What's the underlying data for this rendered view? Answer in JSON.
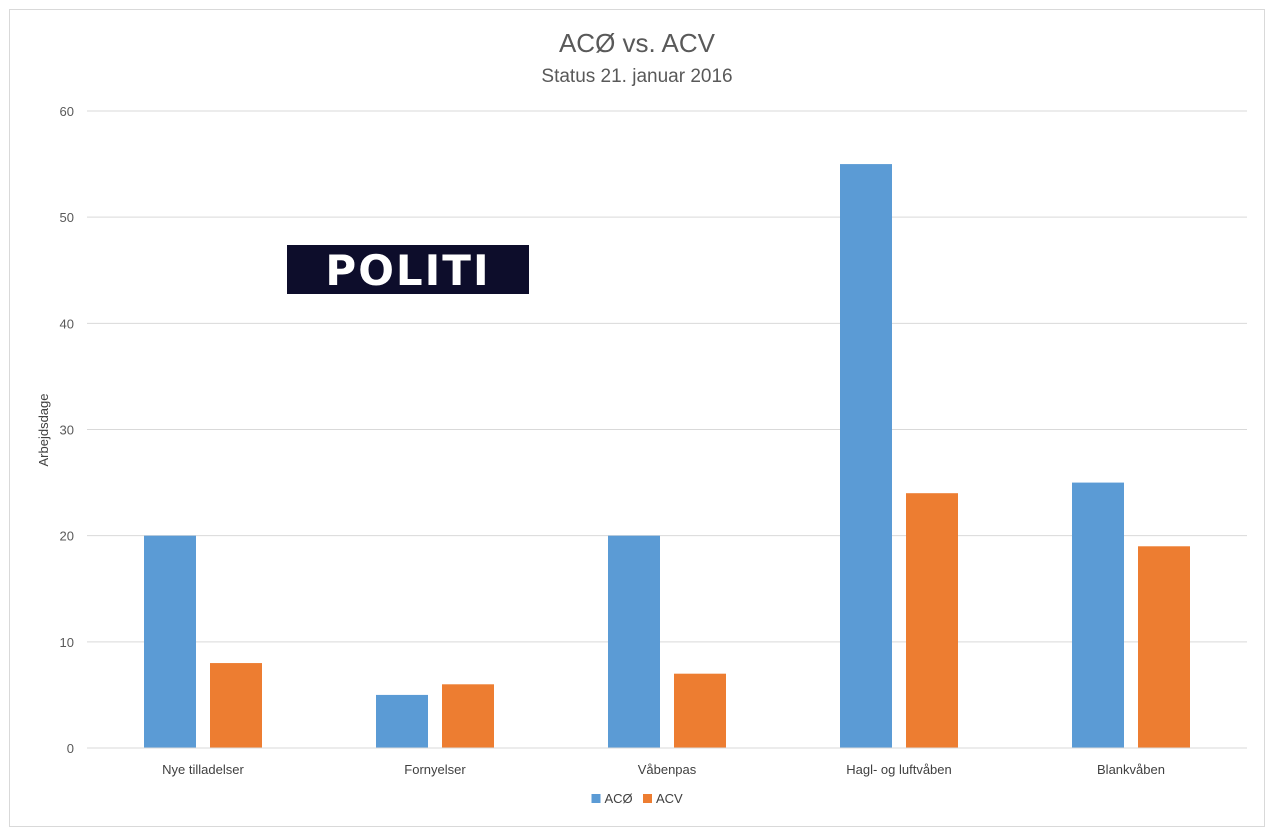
{
  "chart_data": {
    "type": "bar",
    "title": "ACØ vs. ACV",
    "subtitle": "Status 21. januar 2016",
    "xlabel": "",
    "ylabel": "Arbejdsdage",
    "ylim": [
      0,
      60
    ],
    "yticks": [
      0,
      10,
      20,
      30,
      40,
      50,
      60
    ],
    "grid": true,
    "legend_position": "bottom",
    "categories": [
      "Nye tilladelser",
      "Fornyelser",
      "Våbenpas",
      "Hagl- og luftvåben",
      "Blankvåben"
    ],
    "series": [
      {
        "name": "ACØ",
        "color": "#5b9bd5",
        "values": [
          20,
          5,
          20,
          55,
          25
        ]
      },
      {
        "name": "ACV",
        "color": "#ed7d31",
        "values": [
          8,
          6,
          7,
          24,
          19
        ]
      }
    ]
  },
  "logo": {
    "text": "POLITI",
    "background": "#0d0d2b",
    "color": "#ffffff"
  },
  "colors": {
    "gridline": "#d9d9d9",
    "axis_text": "#595959",
    "frame_border": "#d9d9d9"
  }
}
